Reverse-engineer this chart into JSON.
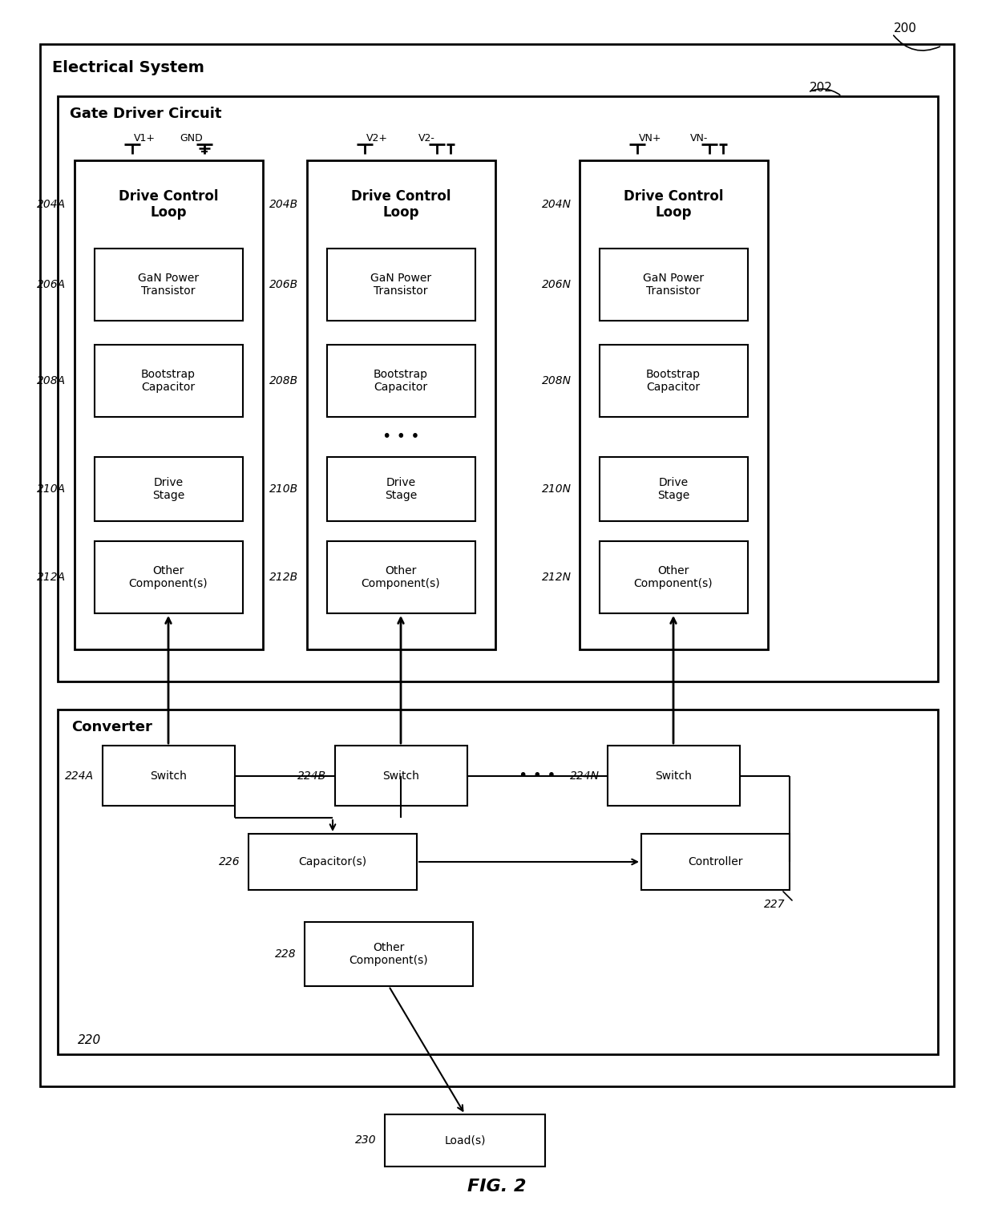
{
  "bg_color": "#ffffff",
  "line_color": "#000000",
  "fig_label": "FIG. 2",
  "columns": [
    {
      "dcl_ref": "204A",
      "dcl_label": "Drive Control\nLoop",
      "gan_ref": "206A",
      "gan_label": "GaN Power\nTransistor",
      "boot_ref": "208A",
      "boot_label": "Bootstrap\nCapacitor",
      "drive_ref": "210A",
      "drive_label": "Drive\nStage",
      "other_ref": "212A",
      "other_label": "Other\nComponent(s)",
      "switch_ref": "224A",
      "switch_label": "Switch",
      "v_pos": "V1+",
      "v_neg": "GND",
      "v_neg_is_gnd": true,
      "dots": false
    },
    {
      "dcl_ref": "204B",
      "dcl_label": "Drive Control\nLoop",
      "gan_ref": "206B",
      "gan_label": "GaN Power\nTransistor",
      "boot_ref": "208B",
      "boot_label": "Bootstrap\nCapacitor",
      "drive_ref": "210B",
      "drive_label": "Drive\nStage",
      "other_ref": "212B",
      "other_label": "Other\nComponent(s)",
      "switch_ref": "224B",
      "switch_label": "Switch",
      "v_pos": "V2+",
      "v_neg": "V2-",
      "v_neg_is_gnd": false,
      "dots": true
    },
    {
      "dcl_ref": "204N",
      "dcl_label": "Drive Control\nLoop",
      "gan_ref": "206N",
      "gan_label": "GaN Power\nTransistor",
      "boot_ref": "208N",
      "boot_label": "Bootstrap\nCapacitor",
      "drive_ref": "210N",
      "drive_label": "Drive\nStage",
      "other_ref": "212N",
      "other_label": "Other\nComponent(s)",
      "switch_ref": "224N",
      "switch_label": "Switch",
      "v_pos": "VN+",
      "v_neg": "VN-",
      "v_neg_is_gnd": false,
      "dots": false
    }
  ],
  "cap_ref": "226",
  "cap_label": "Capacitor(s)",
  "ctrl_ref": "227",
  "ctrl_label": "Controller",
  "other_conv_ref": "228",
  "other_conv_label": "Other\nComponent(s)",
  "load_ref": "230",
  "load_label": "Load(s)",
  "ref_200": "200",
  "ref_202": "202",
  "ref_220": "220"
}
